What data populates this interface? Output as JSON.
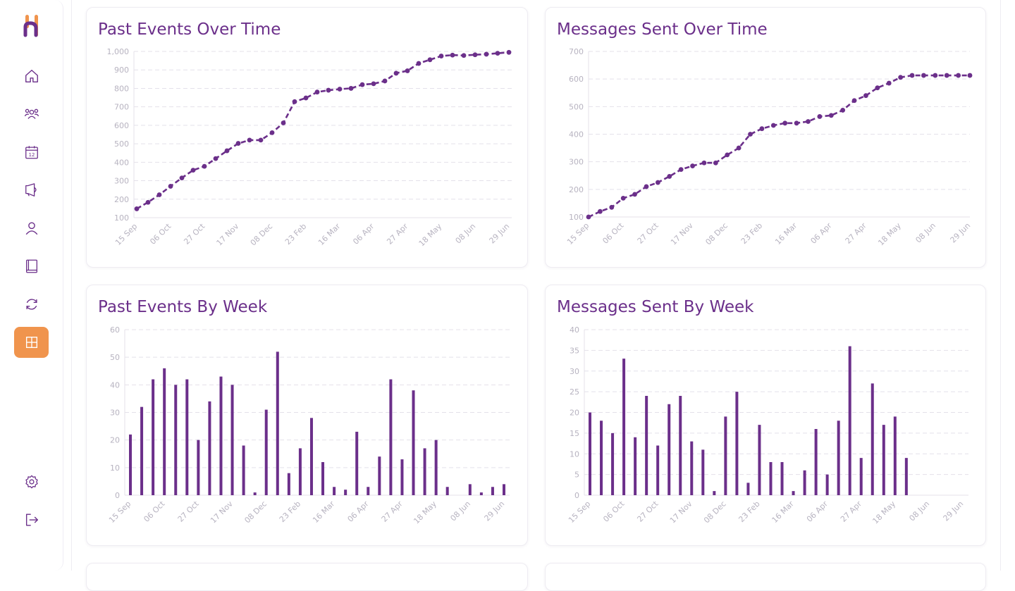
{
  "sidebar": {
    "items": [
      {
        "name": "home-icon",
        "active": false
      },
      {
        "name": "users-icon",
        "active": false
      },
      {
        "name": "calendar-icon",
        "active": false,
        "label": "12"
      },
      {
        "name": "megaphone-icon",
        "active": false
      },
      {
        "name": "user-icon",
        "active": false
      },
      {
        "name": "book-icon",
        "active": false
      },
      {
        "name": "sync-icon",
        "active": false
      },
      {
        "name": "grid-icon",
        "active": true
      }
    ],
    "bottom": [
      {
        "name": "settings-icon"
      },
      {
        "name": "logout-icon"
      }
    ]
  },
  "colors": {
    "accent": "#6b2f8a",
    "active": "#f0944d",
    "grid": "#e4e1ea",
    "tick": "#b7b3c0"
  },
  "chart_data": [
    {
      "id": "past-events-over-time",
      "type": "line",
      "title": "Past Events Over Time",
      "xlabel": "",
      "ylabel": "",
      "ylim": [
        100,
        1000
      ],
      "yticks": [
        "1,000",
        "900",
        "800",
        "700",
        "600",
        "500",
        "400",
        "300",
        "200",
        "100"
      ],
      "yticks_values": [
        1000,
        900,
        800,
        700,
        600,
        500,
        400,
        300,
        200,
        100
      ],
      "x_tick_labels": [
        "15 Sep",
        "06 Oct",
        "27 Oct",
        "17 Nov",
        "08 Dec",
        "23 Feb",
        "16 Mar",
        "06 Apr",
        "27 Apr",
        "18 May",
        "08 Jun",
        "29 Jun"
      ],
      "grid": true,
      "values": [
        148,
        183,
        224,
        270,
        315,
        357,
        378,
        420,
        462,
        502,
        520,
        520,
        560,
        613,
        728,
        748,
        780,
        790,
        796,
        800,
        820,
        825,
        840,
        882,
        895,
        935,
        955,
        975,
        980,
        978,
        982,
        985,
        990,
        995
      ]
    },
    {
      "id": "messages-sent-over-time",
      "type": "line",
      "title": "Messages Sent Over Time",
      "xlabel": "",
      "ylabel": "",
      "ylim": [
        100,
        700
      ],
      "yticks": [
        "700",
        "600",
        "500",
        "400",
        "300",
        "200",
        "100"
      ],
      "yticks_values": [
        700,
        600,
        500,
        400,
        300,
        200,
        100
      ],
      "x_tick_labels": [
        "15 Sep",
        "06 Oct",
        "27 Oct",
        "17 Nov",
        "08 Dec",
        "23 Feb",
        "16 Mar",
        "06 Apr",
        "27 Apr",
        "18 May",
        "08 Jun",
        "29 Jun"
      ],
      "grid": true,
      "values": [
        100,
        120,
        135,
        168,
        182,
        210,
        225,
        247,
        272,
        285,
        296,
        296,
        325,
        350,
        400,
        420,
        432,
        440,
        440,
        446,
        464,
        468,
        487,
        522,
        540,
        568,
        585,
        606,
        613,
        613,
        613,
        613,
        613,
        613
      ]
    },
    {
      "id": "past-events-by-week",
      "type": "bar",
      "title": "Past Events By Week",
      "xlabel": "",
      "ylabel": "",
      "ylim": [
        0,
        60
      ],
      "yticks": [
        "60",
        "50",
        "40",
        "30",
        "20",
        "10",
        "0"
      ],
      "yticks_values": [
        60,
        50,
        40,
        30,
        20,
        10,
        0
      ],
      "x_tick_labels": [
        "15 Sep",
        "06 Oct",
        "27 Oct",
        "17 Nov",
        "08 Dec",
        "23 Feb",
        "16 Mar",
        "06 Apr",
        "27 Apr",
        "18 May",
        "08 Jun",
        "29 Jun"
      ],
      "grid": true,
      "values": [
        22,
        32,
        42,
        46,
        40,
        42,
        20,
        34,
        43,
        40,
        18,
        1,
        31,
        52,
        8,
        17,
        28,
        12,
        3,
        2,
        23,
        3,
        14,
        42,
        13,
        38,
        17,
        20,
        3,
        0,
        4,
        1,
        3,
        4
      ]
    },
    {
      "id": "messages-sent-by-week",
      "type": "bar",
      "title": "Messages Sent By Week",
      "xlabel": "",
      "ylabel": "",
      "ylim": [
        0,
        40
      ],
      "yticks": [
        "40",
        "35",
        "30",
        "25",
        "20",
        "15",
        "10",
        "5",
        "0"
      ],
      "yticks_values": [
        40,
        35,
        30,
        25,
        20,
        15,
        10,
        5,
        0
      ],
      "x_tick_labels": [
        "15 Sep",
        "06 Oct",
        "27 Oct",
        "17 Nov",
        "08 Dec",
        "23 Feb",
        "16 Mar",
        "06 Apr",
        "27 Apr",
        "18 May",
        "08 Jun",
        "29 Jun"
      ],
      "grid": true,
      "values": [
        20,
        18,
        15,
        33,
        14,
        24,
        12,
        22,
        24,
        13,
        11,
        1,
        19,
        25,
        3,
        17,
        8,
        8,
        1,
        6,
        16,
        5,
        18,
        36,
        9,
        27,
        17,
        19,
        9,
        0,
        0,
        0,
        0,
        0
      ]
    }
  ]
}
